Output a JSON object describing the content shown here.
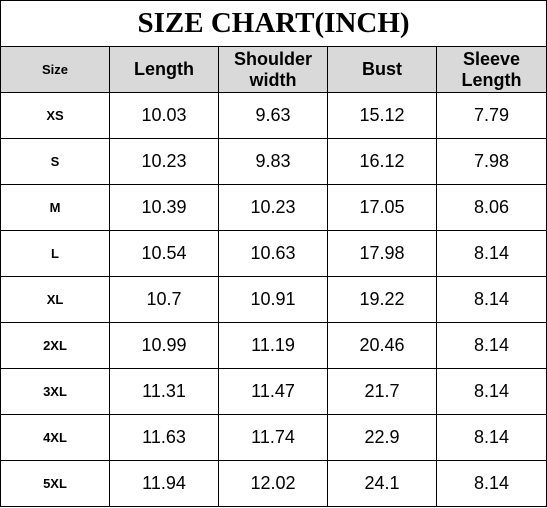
{
  "title": "SIZE CHART(INCH)",
  "table": {
    "header": [
      "Size",
      "Length",
      "Shoulder width",
      "Bust",
      "Sleeve Length"
    ],
    "rows": [
      [
        "XS",
        "10.03",
        "9.63",
        "15.12",
        "7.79"
      ],
      [
        "S",
        "10.23",
        "9.83",
        "16.12",
        "7.98"
      ],
      [
        "M",
        "10.39",
        "10.23",
        "17.05",
        "8.06"
      ],
      [
        "L",
        "10.54",
        "10.63",
        "17.98",
        "8.14"
      ],
      [
        "XL",
        "10.7",
        "10.91",
        "19.22",
        "8.14"
      ],
      [
        "2XL",
        "10.99",
        "11.19",
        "20.46",
        "8.14"
      ],
      [
        "3XL",
        "11.31",
        "11.47",
        "21.7",
        "8.14"
      ],
      [
        "4XL",
        "11.63",
        "11.74",
        "22.9",
        "8.14"
      ],
      [
        "5XL",
        "11.94",
        "12.02",
        "24.1",
        "8.14"
      ]
    ]
  }
}
